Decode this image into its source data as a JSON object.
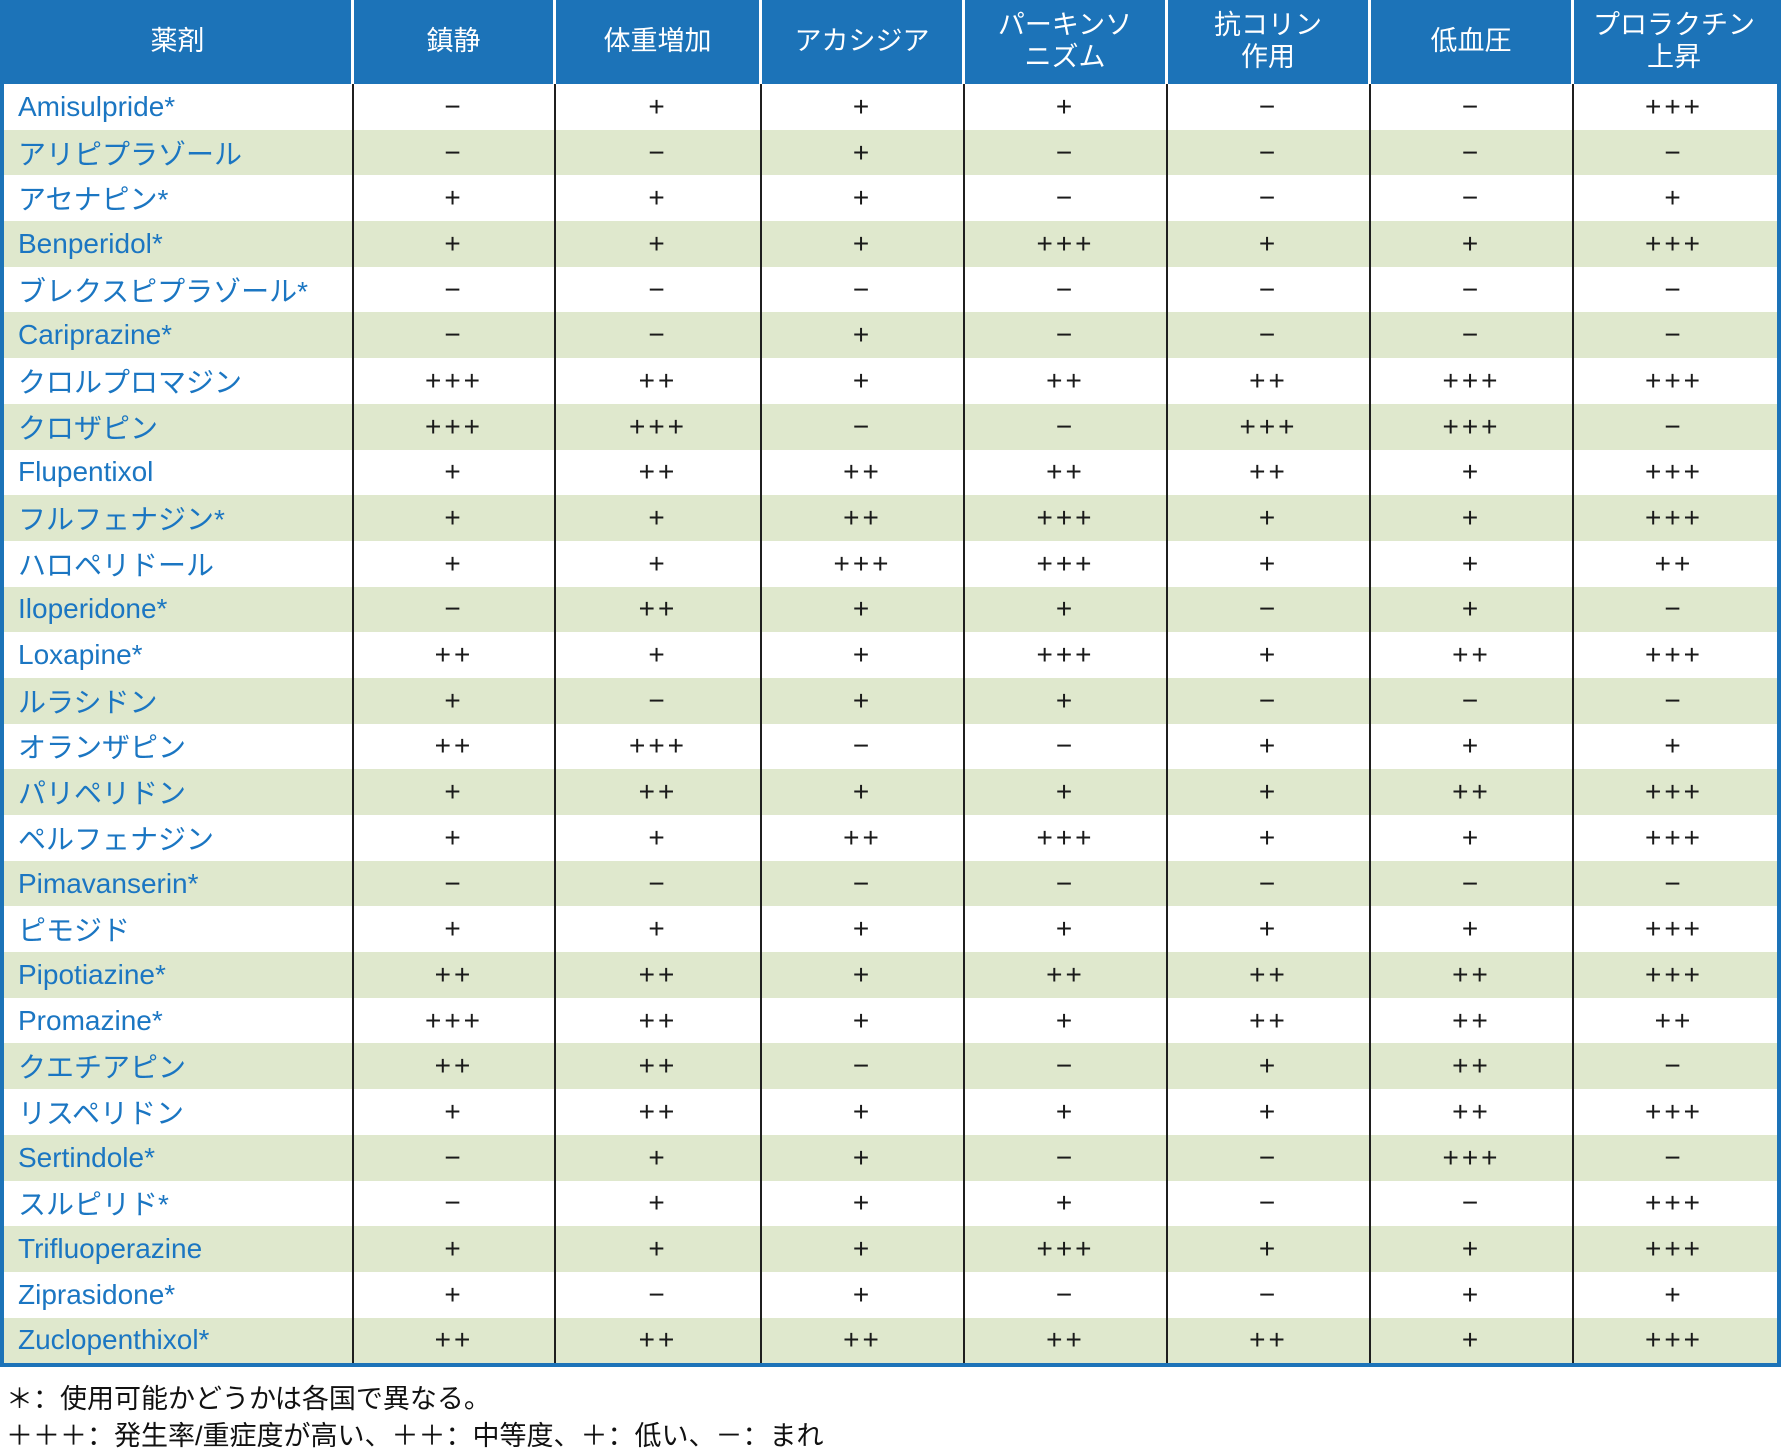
{
  "table": {
    "columns": [
      {
        "key": "drug",
        "label": "薬剤"
      },
      {
        "key": "sedation",
        "label": "鎮静"
      },
      {
        "key": "weight-gain",
        "label": "体重増加"
      },
      {
        "key": "akathisia",
        "label": "アカシジア"
      },
      {
        "key": "parkinsonism",
        "label": "パーキンソ\nニズム"
      },
      {
        "key": "anticholinergic",
        "label": "抗コリン\n作用"
      },
      {
        "key": "hypotension",
        "label": "低血圧"
      },
      {
        "key": "prolactin",
        "label": "プロラクチン\n上昇"
      }
    ],
    "rows": [
      {
        "drug": "Amisulpride*",
        "values": [
          "−",
          "+",
          "+",
          "+",
          "−",
          "−",
          "+++"
        ]
      },
      {
        "drug": "アリピプラゾール",
        "values": [
          "−",
          "−",
          "+",
          "−",
          "−",
          "−",
          "−"
        ]
      },
      {
        "drug": "アセナピン*",
        "values": [
          "+",
          "+",
          "+",
          "−",
          "−",
          "−",
          "+"
        ]
      },
      {
        "drug": "Benperidol*",
        "values": [
          "+",
          "+",
          "+",
          "+++",
          "+",
          "+",
          "+++"
        ]
      },
      {
        "drug": "ブレクスピプラゾール*",
        "values": [
          "−",
          "−",
          "−",
          "−",
          "−",
          "−",
          "−"
        ]
      },
      {
        "drug": "Cariprazine*",
        "values": [
          "−",
          "−",
          "+",
          "−",
          "−",
          "−",
          "−"
        ]
      },
      {
        "drug": "クロルプロマジン",
        "values": [
          "+++",
          "++",
          "+",
          "++",
          "++",
          "+++",
          "+++"
        ]
      },
      {
        "drug": "クロザピン",
        "values": [
          "+++",
          "+++",
          "−",
          "−",
          "+++",
          "+++",
          "−"
        ]
      },
      {
        "drug": "Flupentixol",
        "values": [
          "+",
          "++",
          "++",
          "++",
          "++",
          "+",
          "+++"
        ]
      },
      {
        "drug": "フルフェナジン*",
        "values": [
          "+",
          "+",
          "++",
          "+++",
          "+",
          "+",
          "+++"
        ]
      },
      {
        "drug": "ハロペリドール",
        "values": [
          "+",
          "+",
          "+++",
          "+++",
          "+",
          "+",
          "++"
        ]
      },
      {
        "drug": "Iloperidone*",
        "values": [
          "−",
          "++",
          "+",
          "+",
          "−",
          "+",
          "−"
        ]
      },
      {
        "drug": "Loxapine*",
        "values": [
          "++",
          "+",
          "+",
          "+++",
          "+",
          "++",
          "+++"
        ]
      },
      {
        "drug": "ルラシドン",
        "values": [
          "+",
          "−",
          "+",
          "+",
          "−",
          "−",
          "−"
        ]
      },
      {
        "drug": "オランザピン",
        "values": [
          "++",
          "+++",
          "−",
          "−",
          "+",
          "+",
          "+"
        ]
      },
      {
        "drug": "パリペリドン",
        "values": [
          "+",
          "++",
          "+",
          "+",
          "+",
          "++",
          "+++"
        ]
      },
      {
        "drug": "ペルフェナジン",
        "values": [
          "+",
          "+",
          "++",
          "+++",
          "+",
          "+",
          "+++"
        ]
      },
      {
        "drug": "Pimavanserin*",
        "values": [
          "−",
          "−",
          "−",
          "−",
          "−",
          "−",
          "−"
        ]
      },
      {
        "drug": "ピモジド",
        "values": [
          "+",
          "+",
          "+",
          "+",
          "+",
          "+",
          "+++"
        ]
      },
      {
        "drug": "Pipotiazine*",
        "values": [
          "++",
          "++",
          "+",
          "++",
          "++",
          "++",
          "+++"
        ]
      },
      {
        "drug": "Promazine*",
        "values": [
          "+++",
          "++",
          "+",
          "+",
          "++",
          "++",
          "++"
        ]
      },
      {
        "drug": "クエチアピン",
        "values": [
          "++",
          "++",
          "−",
          "−",
          "+",
          "++",
          "−"
        ]
      },
      {
        "drug": "リスペリドン",
        "values": [
          "+",
          "++",
          "+",
          "+",
          "+",
          "++",
          "+++"
        ]
      },
      {
        "drug": "Sertindole*",
        "values": [
          "−",
          "+",
          "+",
          "−",
          "−",
          "+++",
          "−"
        ]
      },
      {
        "drug": "スルピリド*",
        "values": [
          "−",
          "+",
          "+",
          "+",
          "−",
          "−",
          "+++"
        ]
      },
      {
        "drug": "Trifluoperazine",
        "values": [
          "+",
          "+",
          "+",
          "+++",
          "+",
          "+",
          "+++"
        ]
      },
      {
        "drug": "Ziprasidone*",
        "values": [
          "+",
          "−",
          "+",
          "−",
          "−",
          "+",
          "+"
        ]
      },
      {
        "drug": "Zuclopenthixol*",
        "values": [
          "++",
          "++",
          "++",
          "++",
          "++",
          "+",
          "+++"
        ]
      }
    ]
  },
  "footnotes": [
    "＊：使用可能かどうかは各国で異なる。",
    "＋＋＋：発生率/重症度が高い、＋＋：中等度、＋：低い、－：まれ"
  ],
  "colors": {
    "header_bg": "#1c73b8",
    "row_alt_bg": "#dfe8cd",
    "drug_text": "#1b76c2",
    "value_text": "#1a1a1a",
    "outer_border": "#1c73b8"
  }
}
